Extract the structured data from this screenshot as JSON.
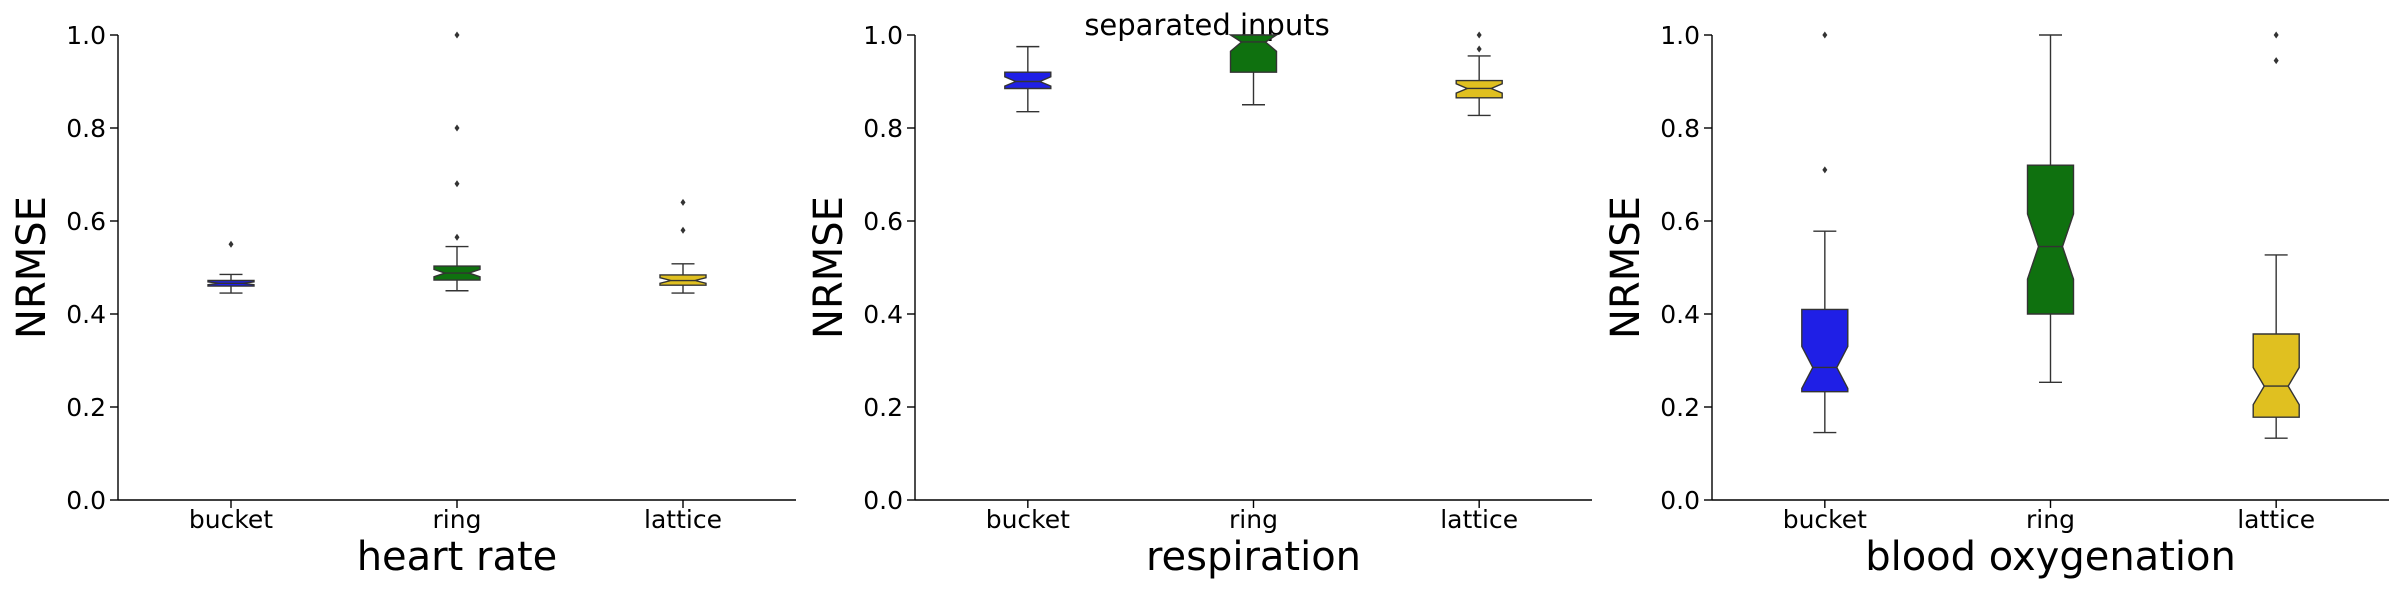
{
  "figure": {
    "suptitle": "separated inputs"
  },
  "colors": [
    "#1f1fe6",
    "#0f710f",
    "#e0c020"
  ],
  "chart_data": [
    {
      "type": "box",
      "notched": true,
      "title": "",
      "xlabel": "heart rate",
      "ylabel": "NRMSE",
      "ylim": [
        0,
        1.0
      ],
      "yticks": [
        "0.0",
        "0.2",
        "0.4",
        "0.6",
        "0.8",
        "1.0"
      ],
      "categories": [
        "bucket",
        "ring",
        "lattice"
      ],
      "boxes": [
        {
          "whisker_low": 0.445,
          "q1": 0.46,
          "median": 0.466,
          "q3": 0.472,
          "whisker_high": 0.485,
          "notch_low": 0.463,
          "notch_high": 0.469,
          "outliers": [
            0.55
          ]
        },
        {
          "whisker_low": 0.45,
          "q1": 0.473,
          "median": 0.488,
          "q3": 0.503,
          "whisker_high": 0.545,
          "notch_low": 0.48,
          "notch_high": 0.496,
          "outliers": [
            0.565,
            0.68,
            0.8,
            1.0
          ]
        },
        {
          "whisker_low": 0.445,
          "q1": 0.462,
          "median": 0.472,
          "q3": 0.484,
          "whisker_high": 0.508,
          "notch_low": 0.466,
          "notch_high": 0.478,
          "outliers": [
            0.58,
            0.64
          ]
        }
      ]
    },
    {
      "type": "box",
      "notched": true,
      "title": "",
      "xlabel": "respiration",
      "ylabel": "NRMSE",
      "ylim": [
        0,
        1.0
      ],
      "yticks": [
        "0.0",
        "0.2",
        "0.4",
        "0.6",
        "0.8",
        "1.0"
      ],
      "categories": [
        "bucket",
        "ring",
        "lattice"
      ],
      "boxes": [
        {
          "whisker_low": 0.835,
          "q1": 0.885,
          "median": 0.9,
          "q3": 0.92,
          "whisker_high": 0.975,
          "notch_low": 0.89,
          "notch_high": 0.91,
          "outliers": []
        },
        {
          "whisker_low": 0.85,
          "q1": 0.92,
          "median": 0.985,
          "q3": 1.0,
          "whisker_high": 1.0,
          "notch_low": 0.965,
          "notch_high": 1.0,
          "outliers": []
        },
        {
          "whisker_low": 0.827,
          "q1": 0.865,
          "median": 0.885,
          "q3": 0.902,
          "whisker_high": 0.955,
          "notch_low": 0.875,
          "notch_high": 0.895,
          "outliers": [
            0.97,
            1.0
          ]
        }
      ]
    },
    {
      "type": "box",
      "notched": true,
      "title": "",
      "xlabel": "blood oxygenation",
      "ylabel": "NRMSE",
      "ylim": [
        0,
        1.0
      ],
      "yticks": [
        "0.0",
        "0.2",
        "0.4",
        "0.6",
        "0.8",
        "1.0"
      ],
      "categories": [
        "bucket",
        "ring",
        "lattice"
      ],
      "boxes": [
        {
          "whisker_low": 0.145,
          "q1": 0.233,
          "median": 0.285,
          "q3": 0.41,
          "whisker_high": 0.578,
          "notch_low": 0.24,
          "notch_high": 0.33,
          "outliers": [
            0.71,
            1.0
          ]
        },
        {
          "whisker_low": 0.253,
          "q1": 0.4,
          "median": 0.545,
          "q3": 0.72,
          "whisker_high": 1.0,
          "notch_low": 0.475,
          "notch_high": 0.615,
          "outliers": []
        },
        {
          "whisker_low": 0.133,
          "q1": 0.178,
          "median": 0.245,
          "q3": 0.357,
          "whisker_high": 0.527,
          "notch_low": 0.205,
          "notch_high": 0.285,
          "outliers": [
            0.945,
            1.0
          ]
        }
      ]
    }
  ]
}
